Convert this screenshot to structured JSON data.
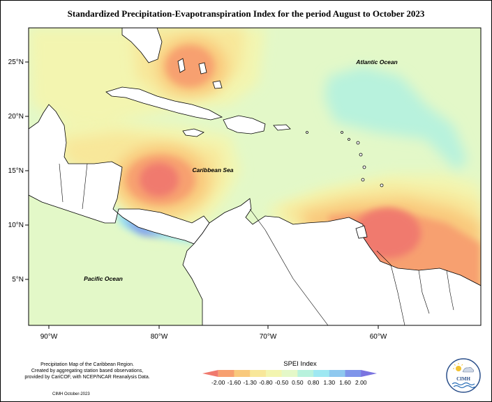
{
  "title": "Standardized Precipitation-Evapotranspiration Index for the period August to October 2023",
  "map": {
    "lat_ticks": [
      "25°N",
      "20°N",
      "15°N",
      "10°N",
      "5°N"
    ],
    "lon_ticks": [
      "90°W",
      "80°W",
      "70°W",
      "60°W"
    ],
    "ocean_labels": {
      "atlantic": "Atlantic Ocean",
      "caribbean": "Caribbean Sea",
      "pacific": "Pacific Ocean"
    }
  },
  "caption": {
    "lines": [
      "Precipitation Map of the Caribbean Region.",
      "Created by aggregating station based observations,",
      "provided by CariCOF, with NCEP/NCAR Reanalysis Data."
    ],
    "credit": "CIMH October-2023"
  },
  "legend": {
    "title": "SPEI Index",
    "ticks": [
      "-2.00",
      "-1.60",
      "-1.30",
      "-0.80",
      "-0.50",
      "0.50",
      "0.80",
      "1.30",
      "1.60",
      "2.00"
    ],
    "colors": [
      "#f07a6e",
      "#f7a070",
      "#f9c97d",
      "#f8e79a",
      "#f3f5b0",
      "#e4f8c8",
      "#b8f2dd",
      "#9ee8f2",
      "#8ec8ef",
      "#7f95ea",
      "#7b74e0"
    ]
  },
  "logo": {
    "text": "CIMH",
    "icon": "cimh-logo-icon"
  }
}
